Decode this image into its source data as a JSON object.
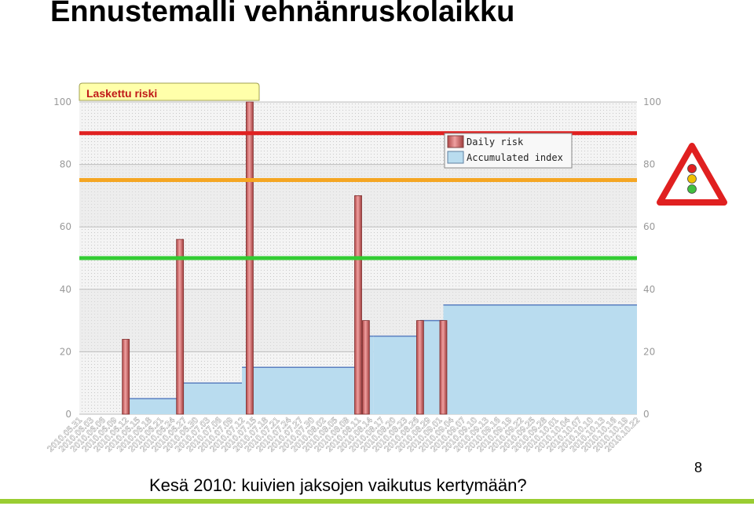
{
  "slide": {
    "title": "Ennustemalli vehnänruskolaikku",
    "caption": "Kesä 2010: kuivien jaksojen vaikutus kertymään?",
    "page_number": "8"
  },
  "warning_sign": {
    "icon": "traffic-light-warning-icon",
    "colors": [
      "#e02020",
      "#f0c000",
      "#40c040"
    ]
  },
  "chart_data": {
    "type": "bar",
    "title": "Laskettu riski",
    "ylim": [
      0,
      100
    ],
    "yticks": [
      0,
      20,
      40,
      60,
      80,
      100
    ],
    "grid": true,
    "legend_position": "top-right",
    "legend": [
      {
        "name": "Daily risk",
        "color": "#d98080"
      },
      {
        "name": "Accumulated index",
        "color": "#b9dcef"
      }
    ],
    "threshold_lines": [
      {
        "value": 90,
        "color": "#e02020"
      },
      {
        "value": 75,
        "color": "#f5a623"
      },
      {
        "value": 50,
        "color": "#33cc33"
      }
    ],
    "x_start": "2010-05-31",
    "x_end": "2010-10-22",
    "x_tick_labels": [
      "2010.05.31",
      "2010.06.03",
      "2010.06.06",
      "2010.06.09",
      "2010.06.12",
      "2010.06.15",
      "2010.06.18",
      "2010.06.21",
      "2010.06.24",
      "2010.06.27",
      "2010.06.30",
      "2010.07.03",
      "2010.07.06",
      "2010.07.09",
      "2010.07.12",
      "2010.07.15",
      "2010.07.18",
      "2010.07.21",
      "2010.07.24",
      "2010.07.27",
      "2010.07.30",
      "2010.08.02",
      "2010.08.05",
      "2010.08.08",
      "2010.08.11",
      "2010.08.14",
      "2010.08.17",
      "2010.08.20",
      "2010.08.23",
      "2010.08.26",
      "2010.08.29",
      "2010.09.01",
      "2010.09.04",
      "2010.09.07",
      "2010.09.10",
      "2010.09.13",
      "2010.09.16",
      "2010.09.19",
      "2010.09.22",
      "2010.09.25",
      "2010.09.28",
      "2010.10.01",
      "2010.10.04",
      "2010.10.07",
      "2010.10.10",
      "2010.10.13",
      "2010.10.16",
      "2010.10.19",
      "2010.10.22"
    ],
    "daily_risk": [
      {
        "date": "2010-06-12",
        "value": 24
      },
      {
        "date": "2010-06-26",
        "value": 56
      },
      {
        "date": "2010-07-14",
        "value": 100
      },
      {
        "date": "2010-08-11",
        "value": 70
      },
      {
        "date": "2010-08-13",
        "value": 30
      },
      {
        "date": "2010-08-27",
        "value": 30
      },
      {
        "date": "2010-09-02",
        "value": 30
      }
    ],
    "accumulated_index": [
      {
        "from": "2010-06-13",
        "to": "2010-06-26",
        "value": 5
      },
      {
        "from": "2010-06-26",
        "to": "2010-07-12",
        "value": 10
      },
      {
        "from": "2010-07-12",
        "to": "2010-08-11",
        "value": 15
      },
      {
        "from": "2010-08-11",
        "to": "2010-08-12",
        "value": 22
      },
      {
        "from": "2010-08-12",
        "to": "2010-08-15",
        "value": 25
      },
      {
        "from": "2010-08-15",
        "to": "2010-08-27",
        "value": 25
      },
      {
        "from": "2010-08-27",
        "to": "2010-09-02",
        "value": 30
      },
      {
        "from": "2010-09-02",
        "to": "2010-10-22",
        "value": 35
      }
    ]
  }
}
